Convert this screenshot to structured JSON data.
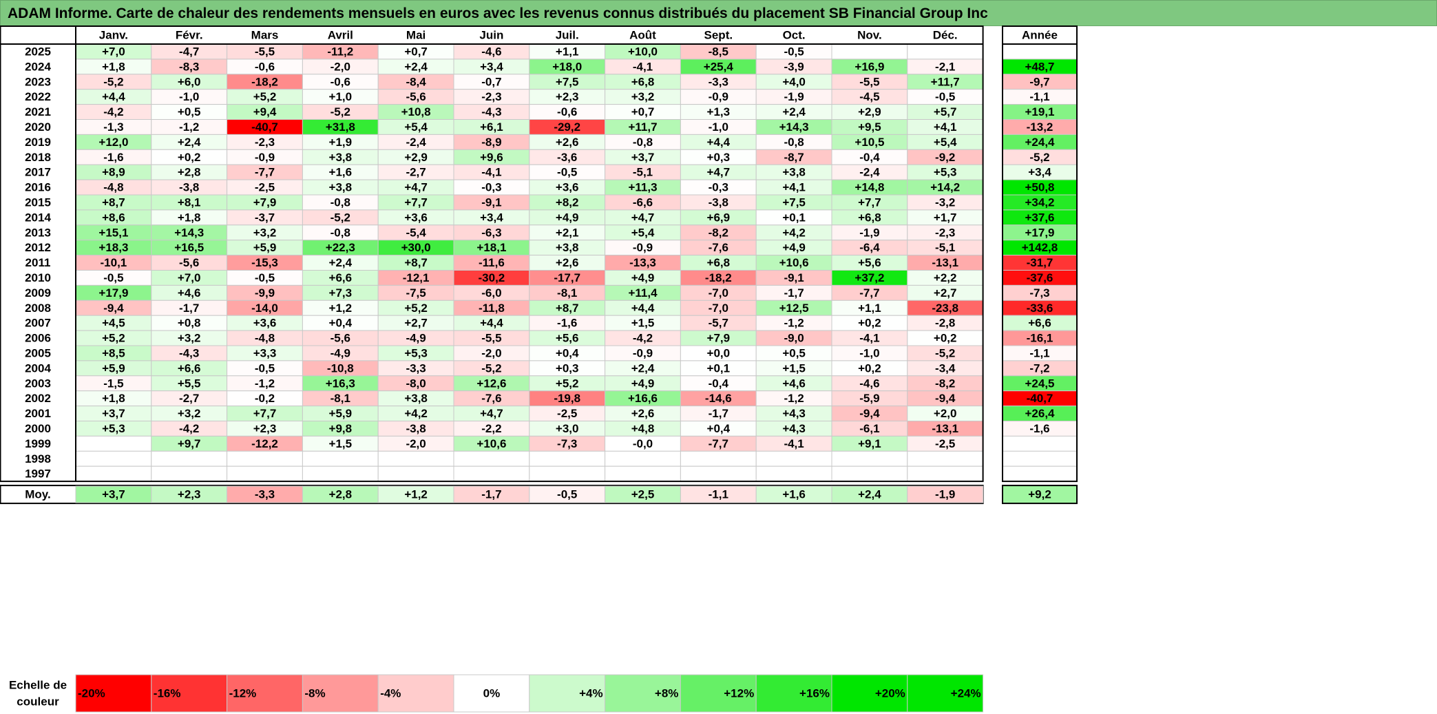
{
  "title": "ADAM Informe. Carte de chaleur des rendements mensuels en euros avec les revenus connus distribués du placement SB Financial Group Inc",
  "chart_data": {
    "type": "heatmap",
    "columns": [
      "Janv.",
      "Févr.",
      "Mars",
      "Avril",
      "Mai",
      "Juin",
      "Juil.",
      "Août",
      "Sept.",
      "Oct.",
      "Nov.",
      "Déc."
    ],
    "year_column_label": "Année",
    "rows": [
      {
        "label": "2025",
        "values": [
          "+7,0",
          "-4,7",
          "-5,5",
          "-11,2",
          "+0,7",
          "-4,6",
          "+1,1",
          "+10,0",
          "-8,5",
          "-0,5",
          "",
          ""
        ],
        "year": ""
      },
      {
        "label": "2024",
        "values": [
          "+1,8",
          "-8,3",
          "-0,6",
          "-2,0",
          "+2,4",
          "+3,4",
          "+18,0",
          "-4,1",
          "+25,4",
          "-3,9",
          "+16,9",
          "-2,1"
        ],
        "year": "+48,7"
      },
      {
        "label": "2023",
        "values": [
          "-5,2",
          "+6,0",
          "-18,2",
          "-0,6",
          "-8,4",
          "-0,7",
          "+7,5",
          "+6,8",
          "-3,3",
          "+4,0",
          "-5,5",
          "+11,7"
        ],
        "year": "-9,7"
      },
      {
        "label": "2022",
        "values": [
          "+4,4",
          "-1,0",
          "+5,2",
          "+1,0",
          "-5,6",
          "-2,3",
          "+2,3",
          "+3,2",
          "-0,9",
          "-1,9",
          "-4,5",
          "-0,5"
        ],
        "year": "-1,1"
      },
      {
        "label": "2021",
        "values": [
          "-4,2",
          "+0,5",
          "+9,4",
          "-5,2",
          "+10,8",
          "-4,3",
          "-0,6",
          "+0,7",
          "+1,3",
          "+2,4",
          "+2,9",
          "+5,7"
        ],
        "year": "+19,1"
      },
      {
        "label": "2020",
        "values": [
          "-1,3",
          "-1,2",
          "-40,7",
          "+31,8",
          "+5,4",
          "+6,1",
          "-29,2",
          "+11,7",
          "-1,0",
          "+14,3",
          "+9,5",
          "+4,1"
        ],
        "year": "-13,2"
      },
      {
        "label": "2019",
        "values": [
          "+12,0",
          "+2,4",
          "-2,3",
          "+1,9",
          "-2,4",
          "-8,9",
          "+2,6",
          "-0,8",
          "+4,4",
          "-0,8",
          "+10,5",
          "+5,4"
        ],
        "year": "+24,4"
      },
      {
        "label": "2018",
        "values": [
          "-1,6",
          "+0,2",
          "-0,9",
          "+3,8",
          "+2,9",
          "+9,6",
          "-3,6",
          "+3,7",
          "+0,3",
          "-8,7",
          "-0,4",
          "-9,2"
        ],
        "year": "-5,2"
      },
      {
        "label": "2017",
        "values": [
          "+8,9",
          "+2,8",
          "-7,7",
          "+1,6",
          "-2,7",
          "-4,1",
          "-0,5",
          "-5,1",
          "+4,7",
          "+3,8",
          "-2,4",
          "+5,3"
        ],
        "year": "+3,4"
      },
      {
        "label": "2016",
        "values": [
          "-4,8",
          "-3,8",
          "-2,5",
          "+3,8",
          "+4,7",
          "-0,3",
          "+3,6",
          "+11,3",
          "-0,3",
          "+4,1",
          "+14,8",
          "+14,2"
        ],
        "year": "+50,8"
      },
      {
        "label": "2015",
        "values": [
          "+8,7",
          "+8,1",
          "+7,9",
          "-0,8",
          "+7,7",
          "-9,1",
          "+8,2",
          "-6,6",
          "-3,8",
          "+7,5",
          "+7,7",
          "-3,2"
        ],
        "year": "+34,2"
      },
      {
        "label": "2014",
        "values": [
          "+8,6",
          "+1,8",
          "-3,7",
          "-5,2",
          "+3,6",
          "+3,4",
          "+4,9",
          "+4,7",
          "+6,9",
          "+0,1",
          "+6,8",
          "+1,7"
        ],
        "year": "+37,6"
      },
      {
        "label": "2013",
        "values": [
          "+15,1",
          "+14,3",
          "+3,2",
          "-0,8",
          "-5,4",
          "-6,3",
          "+2,1",
          "+5,4",
          "-8,2",
          "+4,2",
          "-1,9",
          "-2,3"
        ],
        "year": "+17,9"
      },
      {
        "label": "2012",
        "values": [
          "+18,3",
          "+16,5",
          "+5,9",
          "+22,3",
          "+30,0",
          "+18,1",
          "+3,8",
          "-0,9",
          "-7,6",
          "+4,9",
          "-6,4",
          "-5,1"
        ],
        "year": "+142,8"
      },
      {
        "label": "2011",
        "values": [
          "-10,1",
          "-5,6",
          "-15,3",
          "+2,4",
          "+8,7",
          "-11,6",
          "+2,6",
          "-13,3",
          "+6,8",
          "+10,6",
          "+5,6",
          "-13,1"
        ],
        "year": "-31,7"
      },
      {
        "label": "2010",
        "values": [
          "-0,5",
          "+7,0",
          "-0,5",
          "+6,6",
          "-12,1",
          "-30,2",
          "-17,7",
          "+4,9",
          "-18,2",
          "-9,1",
          "+37,2",
          "+2,2"
        ],
        "year": "-37,6"
      },
      {
        "label": "2009",
        "values": [
          "+17,9",
          "+4,6",
          "-9,9",
          "+7,3",
          "-7,5",
          "-6,0",
          "-8,1",
          "+11,4",
          "-7,0",
          "-1,7",
          "-7,7",
          "+2,7"
        ],
        "year": "-7,3"
      },
      {
        "label": "2008",
        "values": [
          "-9,4",
          "-1,7",
          "-14,0",
          "+1,2",
          "+5,2",
          "-11,8",
          "+8,7",
          "+4,4",
          "-7,0",
          "+12,5",
          "+1,1",
          "-23,8"
        ],
        "year": "-33,6"
      },
      {
        "label": "2007",
        "values": [
          "+4,5",
          "+0,8",
          "+3,6",
          "+0,4",
          "+2,7",
          "+4,4",
          "-1,6",
          "+1,5",
          "-5,7",
          "-1,2",
          "+0,2",
          "-2,8"
        ],
        "year": "+6,6"
      },
      {
        "label": "2006",
        "values": [
          "+5,2",
          "+3,2",
          "-4,8",
          "-5,6",
          "-4,9",
          "-5,5",
          "+5,6",
          "-4,2",
          "+7,9",
          "-9,0",
          "-4,1",
          "+0,2"
        ],
        "year": "-16,1"
      },
      {
        "label": "2005",
        "values": [
          "+8,5",
          "-4,3",
          "+3,3",
          "-4,9",
          "+5,3",
          "-2,0",
          "+0,4",
          "-0,9",
          "+0,0",
          "+0,5",
          "-1,0",
          "-5,2"
        ],
        "year": "-1,1"
      },
      {
        "label": "2004",
        "values": [
          "+5,9",
          "+6,6",
          "-0,5",
          "-10,8",
          "-3,3",
          "-5,2",
          "+0,3",
          "+2,4",
          "+0,1",
          "+1,5",
          "+0,2",
          "-3,4"
        ],
        "year": "-7,2"
      },
      {
        "label": "2003",
        "values": [
          "-1,5",
          "+5,5",
          "-1,2",
          "+16,3",
          "-8,0",
          "+12,6",
          "+5,2",
          "+4,9",
          "-0,4",
          "+4,6",
          "-4,6",
          "-8,2"
        ],
        "year": "+24,5"
      },
      {
        "label": "2002",
        "values": [
          "+1,8",
          "-2,7",
          "-0,2",
          "-8,1",
          "+3,8",
          "-7,6",
          "-19,8",
          "+16,6",
          "-14,6",
          "-1,2",
          "-5,9",
          "-9,4"
        ],
        "year": "-40,7"
      },
      {
        "label": "2001",
        "values": [
          "+3,7",
          "+3,2",
          "+7,7",
          "+5,9",
          "+4,2",
          "+4,7",
          "-2,5",
          "+2,6",
          "-1,7",
          "+4,3",
          "-9,4",
          "+2,0"
        ],
        "year": "+26,4"
      },
      {
        "label": "2000",
        "values": [
          "+5,3",
          "-4,2",
          "+2,3",
          "+9,8",
          "-3,8",
          "-2,2",
          "+3,0",
          "+4,8",
          "+0,4",
          "+4,3",
          "-6,1",
          "-13,1"
        ],
        "year": "-1,6"
      },
      {
        "label": "1999",
        "values": [
          "",
          "+9,7",
          "-12,2",
          "+1,5",
          "-2,0",
          "+10,6",
          "-7,3",
          "-0,0",
          "-7,7",
          "-4,1",
          "+9,1",
          "-2,5"
        ],
        "year": ""
      },
      {
        "label": "1998",
        "values": [
          "",
          "",
          "",
          "",
          "",
          "",
          "",
          "",
          "",
          "",
          "",
          ""
        ],
        "year": ""
      },
      {
        "label": "1997",
        "values": [
          "",
          "",
          "",
          "",
          "",
          "",
          "",
          "",
          "",
          "",
          "",
          ""
        ],
        "year": ""
      }
    ],
    "average": {
      "label": "Moy.",
      "values": [
        "+3,7",
        "+2,3",
        "-3,3",
        "+2,8",
        "+1,2",
        "-1,7",
        "-0,5",
        "+2,5",
        "-1,1",
        "+1,6",
        "+2,4",
        "-1,9"
      ],
      "year": "+9,2"
    },
    "color_scale": {
      "label": "Echelle de couleur",
      "stops": [
        {
          "text": "-20%",
          "value": -20
        },
        {
          "text": "-16%",
          "value": -16
        },
        {
          "text": "-12%",
          "value": -12
        },
        {
          "text": "-8%",
          "value": -8
        },
        {
          "text": "-4%",
          "value": -4
        },
        {
          "text": "0%",
          "value": 0
        },
        {
          "text": "+4%",
          "value": 4
        },
        {
          "text": "+8%",
          "value": 8
        },
        {
          "text": "+12%",
          "value": 12
        },
        {
          "text": "+16%",
          "value": 16
        },
        {
          "text": "+20%",
          "value": 20
        },
        {
          "text": "+24%",
          "value": 24
        }
      ]
    },
    "colors": {
      "negative_max": "#ff0000",
      "zero": "#ffffff",
      "positive_max": "#00e600",
      "border": "#000000",
      "grid": "#c8c8c8",
      "title_bg": "#7fc880"
    }
  }
}
